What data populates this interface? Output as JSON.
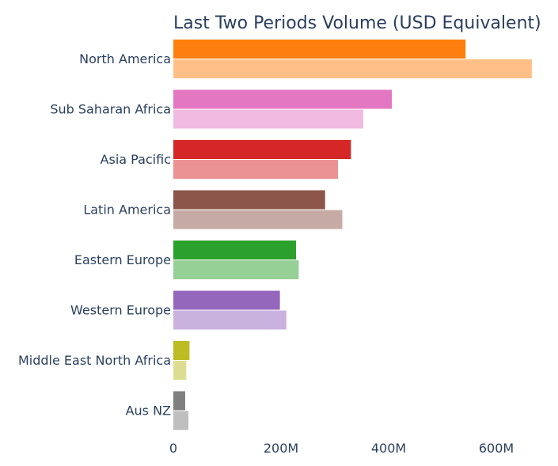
{
  "chart_data": {
    "type": "bar",
    "orientation": "horizontal",
    "title": "Last Two Periods Volume (USD Equivalent)",
    "xlabel": "",
    "ylabel": "",
    "xlim": [
      0,
      720
    ],
    "grid": false,
    "legend": "none",
    "categories": [
      "North America",
      "Sub Saharan Africa",
      "Asia Pacific",
      "Latin America",
      "Eastern Europe",
      "Western Europe",
      "Middle East North Africa",
      "Aus NZ"
    ],
    "series": [
      {
        "values": [
          543,
          406,
          330,
          282,
          228,
          198,
          30,
          22
        ]
      },
      {
        "values": [
          666,
          353,
          306,
          314,
          233,
          210,
          24,
          28
        ]
      }
    ],
    "colors": {
      "period1": [
        "#ff7f0e",
        "#e377c2",
        "#d62728",
        "#8c564b",
        "#2ca02c",
        "#9467bd",
        "#bcbd22",
        "#7f7f7f"
      ],
      "period2": [
        "#ffbf87",
        "#f1bbe1",
        "#eb9394",
        "#c6aba5",
        "#96d096",
        "#c9b3de",
        "#dddd91",
        "#bfbfbf"
      ]
    },
    "x_ticks": [
      {
        "value": 0,
        "label": "0"
      },
      {
        "value": 200,
        "label": "200M"
      },
      {
        "value": 400,
        "label": "400M"
      },
      {
        "value": 600,
        "label": "600M"
      }
    ]
  }
}
